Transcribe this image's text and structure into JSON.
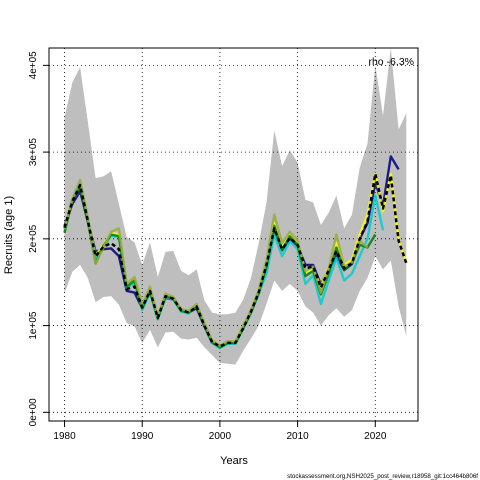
{
  "chart_data": {
    "type": "line",
    "xlabel": "Years",
    "ylabel": "Recruits (age 1)",
    "xlim": [
      1978,
      2025.5
    ],
    "ylim": [
      -10000,
      420000
    ],
    "x_ticks": [
      1980,
      1990,
      2000,
      2010,
      2020
    ],
    "x_tick_labels": [
      "1980",
      "1990",
      "2000",
      "2010",
      "2020"
    ],
    "y_ticks": [
      0,
      100000,
      200000,
      300000,
      400000
    ],
    "y_tick_labels": [
      "0e+00",
      "1e+05",
      "2e+05",
      "3e+05",
      "4e+05"
    ],
    "grid": true,
    "annotation": "rho -6.3%",
    "credit": "stockassessment.org,NSH2025_post_review,r18958_git:1cc464b806f",
    "confidence_band": {
      "color": "#bebebe",
      "x": [
        1980,
        1981,
        1982,
        1983,
        1984,
        1985,
        1986,
        1987,
        1988,
        1989,
        1990,
        1991,
        1992,
        1993,
        1994,
        1995,
        1996,
        1997,
        1998,
        1999,
        2000,
        2001,
        2002,
        2003,
        2004,
        2005,
        2006,
        2007,
        2008,
        2009,
        2010,
        2011,
        2012,
        2013,
        2014,
        2015,
        2016,
        2017,
        2018,
        2019,
        2020,
        2021,
        2022,
        2023,
        2024
      ],
      "upper": [
        340000,
        380000,
        398000,
        335000,
        270000,
        272000,
        278000,
        240000,
        202000,
        196000,
        170000,
        196000,
        156000,
        185000,
        186000,
        163000,
        158000,
        165000,
        129000,
        115000,
        113000,
        113000,
        115000,
        130000,
        155000,
        195000,
        242000,
        325000,
        284000,
        302000,
        288000,
        245000,
        242000,
        216000,
        230000,
        250000,
        212000,
        228000,
        282000,
        310000,
        400000,
        342000,
        420000,
        326000,
        345000
      ],
      "lower": [
        137000,
        162000,
        170000,
        155000,
        127000,
        133000,
        134000,
        124000,
        103000,
        99000,
        80000,
        95000,
        75000,
        92000,
        93000,
        85000,
        84000,
        86000,
        75000,
        66000,
        57000,
        56000,
        55000,
        71000,
        85000,
        100000,
        125000,
        152000,
        140000,
        148000,
        140000,
        122000,
        115000,
        100000,
        112000,
        120000,
        110000,
        118000,
        140000,
        155000,
        180000,
        165000,
        175000,
        122000,
        88000
      ]
    },
    "series": [
      {
        "color": "#000080",
        "x": [
          1980,
          1981,
          1982,
          1983,
          1984,
          1985,
          1986,
          1987,
          1988,
          1989,
          1990,
          1991,
          1992,
          1993,
          1994,
          1995,
          1996,
          1997,
          1998,
          1999,
          2000,
          2001,
          2002,
          2003,
          2004,
          2005,
          2006,
          2007,
          2008,
          2009,
          2010,
          2011,
          2012,
          2013,
          2014,
          2015,
          2016,
          2017,
          2018,
          2019,
          2020,
          2021,
          2022,
          2023
        ],
        "y": [
          215000,
          240000,
          255000,
          220000,
          185000,
          188000,
          189000,
          180000,
          140000,
          138000,
          120000,
          139000,
          110000,
          132000,
          130000,
          118000,
          115000,
          120000,
          99000,
          80000,
          76000,
          80000,
          80000,
          97000,
          115000,
          137000,
          170000,
          210000,
          187000,
          200000,
          192000,
          170000,
          170000,
          147000,
          165000,
          180000,
          164000,
          171000,
          200000,
          218000,
          265000,
          238000,
          295000,
          280000
        ]
      },
      {
        "color": "#ffff00",
        "x": [
          1980,
          1981,
          1982,
          1983,
          1984,
          1985,
          1986,
          1987,
          1988,
          1989,
          1990,
          1991,
          1992,
          1993,
          1994,
          1995,
          1996,
          1997,
          1998,
          1999,
          2000,
          2001,
          2002,
          2003,
          2004,
          2005,
          2006,
          2007,
          2008,
          2009,
          2010,
          2011,
          2012,
          2013,
          2014,
          2015,
          2016,
          2017,
          2018,
          2019,
          2020,
          2021,
          2022,
          2023,
          2024
        ],
        "y": [
          211000,
          244000,
          262000,
          222000,
          181000,
          193000,
          207000,
          205000,
          145000,
          152000,
          122000,
          142000,
          109000,
          135000,
          132000,
          117000,
          116000,
          123000,
          101000,
          82000,
          76000,
          81000,
          82000,
          99000,
          117000,
          141000,
          172000,
          218000,
          190000,
          205000,
          196000,
          162000,
          165000,
          145000,
          167000,
          195000,
          170000,
          176000,
          205000,
          228000,
          275000,
          232000,
          275000,
          199000,
          172000
        ]
      },
      {
        "color": "#00ced1",
        "x": [
          1980,
          1981,
          1982,
          1983,
          1984,
          1985,
          1986,
          1987,
          1988,
          1989,
          1990,
          1991,
          1992,
          1993,
          1994,
          1995,
          1996,
          1997,
          1998,
          1999,
          2000,
          2001,
          2002,
          2003,
          2004,
          2005,
          2006,
          2007,
          2008,
          2009,
          2010,
          2011,
          2012,
          2013,
          2014,
          2015,
          2016,
          2017,
          2018,
          2019,
          2020,
          2021
        ],
        "y": [
          208000,
          245000,
          263000,
          222000,
          178000,
          190000,
          204000,
          202000,
          143000,
          150000,
          118000,
          138000,
          107000,
          133000,
          130000,
          116000,
          114000,
          122000,
          100000,
          80000,
          74000,
          79000,
          79000,
          96000,
          115000,
          137000,
          160000,
          205000,
          180000,
          197000,
          188000,
          148000,
          158000,
          125000,
          152000,
          178000,
          152000,
          160000,
          180000,
          200000,
          250000,
          210000
        ]
      },
      {
        "color": "#008000",
        "x": [
          1980,
          1981,
          1982,
          1983,
          1984,
          1985,
          1986,
          1987,
          1988,
          1989,
          1990,
          1991,
          1992,
          1993,
          1994,
          1995,
          1996,
          1997,
          1998,
          1999,
          2000,
          2001,
          2002,
          2003,
          2004,
          2005,
          2006,
          2007,
          2008,
          2009,
          2010,
          2011,
          2012,
          2013,
          2014,
          2015,
          2016,
          2017,
          2018,
          2019,
          2020
        ],
        "y": [
          207000,
          244000,
          260000,
          220000,
          172000,
          192000,
          205000,
          203000,
          145000,
          152000,
          120000,
          140000,
          108000,
          134000,
          131000,
          117000,
          115000,
          122000,
          100000,
          81000,
          75000,
          80000,
          80000,
          97000,
          116000,
          139000,
          168000,
          215000,
          187000,
          203000,
          193000,
          157000,
          163000,
          136000,
          160000,
          190000,
          164000,
          172000,
          193000,
          190000,
          205000
        ]
      },
      {
        "color": "#9aab3f",
        "x": [
          1980,
          1981,
          1982,
          1983,
          1984,
          1985,
          1986,
          1987,
          1988,
          1989,
          1990,
          1991,
          1992,
          1993,
          1994,
          1995,
          1996,
          1997,
          1998,
          1999,
          2000,
          2001,
          2002,
          2003,
          2004,
          2005,
          2006,
          2007,
          2008,
          2009,
          2010,
          2011,
          2012,
          2013,
          2014,
          2015,
          2016,
          2017,
          2018,
          2019
        ],
        "y": [
          211000,
          246000,
          268000,
          225000,
          171000,
          190000,
          208000,
          212000,
          148000,
          156000,
          124000,
          145000,
          110000,
          137000,
          133000,
          119000,
          117000,
          125000,
          103000,
          83000,
          77000,
          82000,
          82000,
          100000,
          118000,
          141000,
          176000,
          228000,
          195000,
          208000,
          198000,
          163000,
          168000,
          138000,
          166000,
          205000,
          168000,
          173000,
          198000,
          190000
        ]
      },
      {
        "color": "#000000",
        "dashed": true,
        "x": [
          1980,
          1981,
          1982,
          1983,
          1984,
          1985,
          1986,
          1987,
          1988,
          1989,
          1990,
          1991,
          1992,
          1993,
          1994,
          1995,
          1996,
          1997,
          1998,
          1999,
          2000,
          2001,
          2002,
          2003,
          2004,
          2005,
          2006,
          2007,
          2008,
          2009,
          2010,
          2011,
          2012,
          2013,
          2014,
          2015,
          2016,
          2017,
          2018,
          2019,
          2020,
          2021,
          2022,
          2023,
          2024
        ],
        "y": [
          213000,
          243000,
          262000,
          221000,
          180000,
          191000,
          195000,
          188000,
          142000,
          145000,
          121000,
          140000,
          109000,
          134000,
          131000,
          118000,
          115000,
          122000,
          100000,
          81000,
          76000,
          80000,
          80000,
          97000,
          116000,
          138000,
          170000,
          212000,
          188000,
          201000,
          193000,
          166000,
          168000,
          144000,
          164000,
          186000,
          166000,
          172000,
          200000,
          220000,
          275000,
          235000,
          273000,
          198000,
          172000
        ]
      }
    ]
  }
}
